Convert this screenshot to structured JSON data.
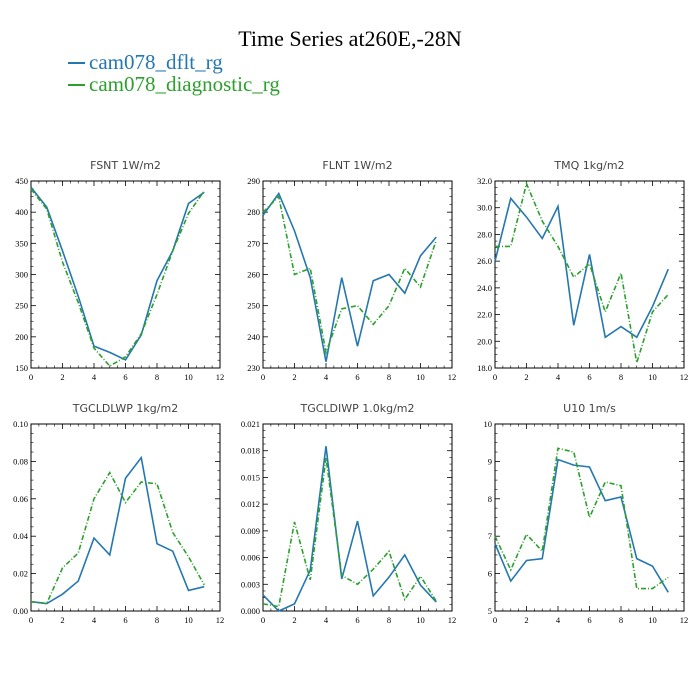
{
  "figure": {
    "title": "Time Series at260E,-28N",
    "legend": [
      {
        "label": "cam078_dflt_rg",
        "color": "#2577b0",
        "dash": "solid"
      },
      {
        "label": "cam078_diagnostic_rg",
        "color": "#2ca02c",
        "dash": "dashdot"
      }
    ]
  },
  "chart_data": [
    {
      "type": "line",
      "title": "FSNT  1W/m2",
      "xlim": [
        0,
        12
      ],
      "xticks": [
        "0",
        "2",
        "4",
        "6",
        "8",
        "10",
        "12"
      ],
      "ylim": [
        150,
        450
      ],
      "yticks": [
        "150",
        "200",
        "250",
        "300",
        "350",
        "400",
        "450"
      ],
      "x": [
        0,
        1,
        2,
        3,
        4,
        5,
        6,
        7,
        8,
        9,
        10,
        11
      ],
      "series": [
        {
          "name": "cam078_dflt_rg",
          "values": [
            440,
            408,
            338,
            265,
            185,
            175,
            163,
            203,
            290,
            338,
            414,
            432
          ]
        },
        {
          "name": "cam078_diagnostic_rg",
          "values": [
            437,
            405,
            320,
            255,
            182,
            153,
            168,
            205,
            268,
            338,
            398,
            434
          ]
        }
      ]
    },
    {
      "type": "line",
      "title": "FLNT  1W/m2",
      "xlim": [
        0,
        12
      ],
      "xticks": [
        "0",
        "2",
        "4",
        "6",
        "8",
        "10",
        "12"
      ],
      "ylim": [
        230,
        290
      ],
      "yticks": [
        "230",
        "240",
        "250",
        "260",
        "270",
        "280",
        "290"
      ],
      "x": [
        0,
        1,
        2,
        3,
        4,
        5,
        6,
        7,
        8,
        9,
        10,
        11
      ],
      "series": [
        {
          "name": "cam078_dflt_rg",
          "values": [
            279,
            286,
            274,
            259,
            232,
            259,
            237,
            258,
            260,
            254,
            266,
            272
          ]
        },
        {
          "name": "cam078_diagnostic_rg",
          "values": [
            280,
            285,
            260,
            262,
            235,
            249,
            250,
            244,
            250,
            262,
            256,
            271
          ]
        }
      ]
    },
    {
      "type": "line",
      "title": "TMQ  1kg/m2",
      "xlim": [
        0,
        12
      ],
      "xticks": [
        "0",
        "2",
        "4",
        "6",
        "8",
        "10",
        "12"
      ],
      "ylim": [
        18.0,
        32.0
      ],
      "yticks": [
        "18.0",
        "20.0",
        "22.0",
        "24.0",
        "26.0",
        "28.0",
        "30.0",
        "32.0"
      ],
      "x": [
        0,
        1,
        2,
        3,
        4,
        5,
        6,
        7,
        8,
        9,
        10,
        11
      ],
      "series": [
        {
          "name": "cam078_dflt_rg",
          "values": [
            26.0,
            30.7,
            29.3,
            27.7,
            30.1,
            21.2,
            26.5,
            20.3,
            21.1,
            20.3,
            22.6,
            25.4
          ]
        },
        {
          "name": "cam078_diagnostic_rg",
          "values": [
            27.1,
            27.1,
            31.8,
            29.0,
            27.1,
            24.8,
            25.8,
            22.2,
            25.1,
            18.4,
            22.2,
            23.5
          ]
        }
      ]
    },
    {
      "type": "line",
      "title": "TGCLDLWP  1kg/m2",
      "xlim": [
        0,
        12
      ],
      "xticks": [
        "0",
        "2",
        "4",
        "6",
        "8",
        "10",
        "12"
      ],
      "ylim": [
        0.0,
        0.1
      ],
      "yticks": [
        "0.00",
        "0.02",
        "0.04",
        "0.06",
        "0.08",
        "0.10"
      ],
      "x": [
        0,
        1,
        2,
        3,
        4,
        5,
        6,
        7,
        8,
        9,
        10,
        11
      ],
      "series": [
        {
          "name": "cam078_dflt_rg",
          "values": [
            0.005,
            0.004,
            0.009,
            0.016,
            0.039,
            0.03,
            0.071,
            0.082,
            0.036,
            0.032,
            0.011,
            0.013
          ]
        },
        {
          "name": "cam078_diagnostic_rg",
          "values": [
            0.005,
            0.004,
            0.023,
            0.031,
            0.06,
            0.074,
            0.058,
            0.069,
            0.068,
            0.042,
            0.029,
            0.014
          ]
        }
      ]
    },
    {
      "type": "line",
      "title": "TGCLDIWP  1.0kg/m2",
      "xlim": [
        0,
        12
      ],
      "xticks": [
        "0",
        "2",
        "4",
        "6",
        "8",
        "10",
        "12"
      ],
      "ylim": [
        0.0,
        0.021
      ],
      "yticks": [
        "0.000",
        "0.003",
        "0.006",
        "0.009",
        "0.012",
        "0.015",
        "0.018",
        "0.021"
      ],
      "x": [
        0,
        1,
        2,
        3,
        4,
        5,
        6,
        7,
        8,
        9,
        10,
        11
      ],
      "series": [
        {
          "name": "cam078_dflt_rg",
          "values": [
            0.0018,
            0.0,
            0.0008,
            0.0046,
            0.0185,
            0.0036,
            0.0101,
            0.0017,
            0.0038,
            0.0063,
            0.0029,
            0.001
          ]
        },
        {
          "name": "cam078_diagnostic_rg",
          "values": [
            0.0008,
            0.0005,
            0.01,
            0.0035,
            0.0172,
            0.004,
            0.003,
            0.0047,
            0.0067,
            0.0013,
            0.0039,
            0.0011
          ]
        }
      ]
    },
    {
      "type": "line",
      "title": "U10  1m/s",
      "xlim": [
        0,
        12
      ],
      "xticks": [
        "0",
        "2",
        "4",
        "6",
        "8",
        "10",
        "12"
      ],
      "ylim": [
        5,
        10
      ],
      "yticks": [
        "5",
        "6",
        "7",
        "8",
        "9",
        "10"
      ],
      "x": [
        0,
        1,
        2,
        3,
        4,
        5,
        6,
        7,
        8,
        9,
        10,
        11
      ],
      "series": [
        {
          "name": "cam078_dflt_rg",
          "values": [
            6.8,
            5.8,
            6.35,
            6.4,
            9.05,
            8.9,
            8.85,
            7.95,
            8.05,
            6.4,
            6.2,
            5.5
          ]
        },
        {
          "name": "cam078_diagnostic_rg",
          "values": [
            7.0,
            6.1,
            7.05,
            6.6,
            9.35,
            9.25,
            7.5,
            8.45,
            8.35,
            5.6,
            5.6,
            5.9
          ]
        }
      ]
    }
  ]
}
